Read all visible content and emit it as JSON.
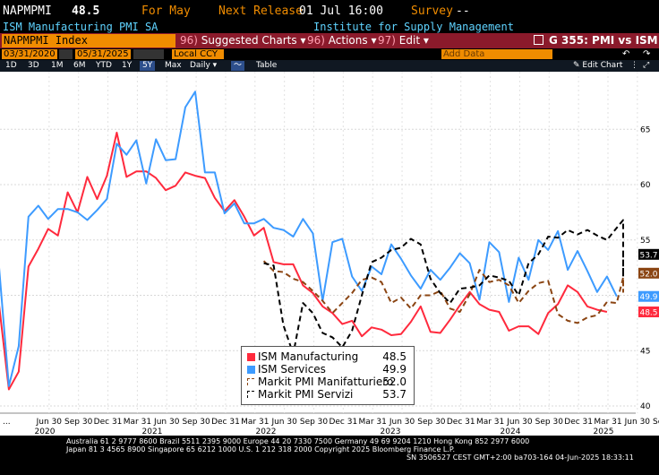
{
  "header": {
    "ticker": "NAPMPMI",
    "value": "48.5",
    "for_label": "For May",
    "next_release_label": "Next Release",
    "next_release_value": "01 Jul 16:00",
    "survey_label": "Survey",
    "survey_value": "--",
    "description": "ISM Manufacturing PMI SA",
    "source": "Institute for Supply Management"
  },
  "menubar": {
    "security": "NAPMPMI Index",
    "items": [
      {
        "num": "96)",
        "label": "Suggested Charts",
        "arrow": "▾"
      },
      {
        "num": "96)",
        "label": "Actions",
        "arrow": "▾"
      },
      {
        "num": "97)",
        "label": "Edit",
        "arrow": "▾"
      }
    ],
    "chart_id": "G 355: PMI vs ISM"
  },
  "controls": {
    "start_date": "03/31/2020",
    "end_date": "05/31/2025",
    "currency": "Local CCY",
    "add_data_placeholder": "Add Data"
  },
  "periods": {
    "items": [
      "1D",
      "3D",
      "1M",
      "6M",
      "YTD",
      "1Y",
      "5Y",
      "Max"
    ],
    "selected": "5Y",
    "frequency": "Daily",
    "table_label": "Table",
    "edit_chart": "Edit Chart"
  },
  "colors": {
    "ism_manufacturing": "#ff2a3d",
    "ism_services": "#3d9bff",
    "markit_manifatturiero": "#8b4513",
    "markit_servizi": "#000000",
    "ticker_field": "#f08c00",
    "menubar": "#8b1a2b"
  },
  "legend": [
    {
      "name": "ISM Manufacturing",
      "value": "48.5",
      "style": "solid"
    },
    {
      "name": "ISM Services",
      "value": "49.9",
      "style": "solid"
    },
    {
      "name": "Markit PMI Manifatturiero",
      "value": "52.0",
      "style": "dashed"
    },
    {
      "name": "Markit PMI Servizi",
      "value": "53.7",
      "style": "dashed"
    }
  ],
  "chart_data": {
    "type": "line",
    "ylim": [
      39.5,
      69
    ],
    "y_ticks": [
      40,
      45,
      50,
      55,
      60,
      65
    ],
    "x_tick_labels": [
      "Jun 30",
      "Sep 30",
      "Dec 31",
      "Mar 31",
      "Jun 30",
      "Sep 30",
      "Dec 31",
      "Mar 31",
      "Jun 30",
      "Sep 30",
      "Dec 31",
      "Mar 31",
      "Jun 30",
      "Sep 30",
      "Dec 31",
      "Mar 31",
      "Jun 30",
      "Sep 30",
      "Dec 31",
      "Mar 31",
      "Jun 30",
      "Sep 30",
      "Dec 31",
      "Mar 31"
    ],
    "year_labels": [
      "2020",
      "2021",
      "2022",
      "2023",
      "2024",
      "2025"
    ],
    "series": [
      {
        "name": "ISM Manufacturing",
        "start": "2020-03",
        "values": [
          49.1,
          41.5,
          43.1,
          52.6,
          54.2,
          56.0,
          55.4,
          59.3,
          57.5,
          60.7,
          58.7,
          60.8,
          64.7,
          60.7,
          61.2,
          61.2,
          60.6,
          59.5,
          59.9,
          61.1,
          60.8,
          60.6,
          58.8,
          57.6,
          58.6,
          57.1,
          55.4,
          56.1,
          53.0,
          52.8,
          52.8,
          50.9,
          50.2,
          49.0,
          48.4,
          47.4,
          47.7,
          46.3,
          47.1,
          46.9,
          46.4,
          46.5,
          47.6,
          49.0,
          46.7,
          46.6,
          47.8,
          49.1,
          50.3,
          49.2,
          48.7,
          48.5,
          46.8,
          47.2,
          47.2,
          46.5,
          48.4,
          49.2,
          50.9,
          50.3,
          49.0,
          48.7,
          48.5
        ]
      },
      {
        "name": "ISM Services",
        "start": "2020-03",
        "values": [
          52.5,
          41.8,
          45.4,
          57.1,
          58.1,
          56.9,
          57.8,
          57.8,
          57.5,
          56.8,
          57.7,
          58.7,
          63.7,
          62.7,
          64.0,
          60.1,
          64.1,
          62.2,
          62.3,
          67.0,
          68.4,
          61.1,
          61.1,
          57.4,
          58.3,
          56.5,
          56.5,
          56.9,
          56.1,
          55.9,
          55.3,
          56.9,
          55.6,
          49.5,
          54.8,
          55.1,
          51.7,
          50.4,
          52.6,
          51.9,
          54.6,
          53.3,
          51.8,
          50.6,
          52.3,
          51.4,
          52.5,
          53.8,
          52.9,
          49.6,
          54.8,
          53.9,
          49.4,
          53.4,
          51.4,
          55.0,
          54.1,
          55.8,
          52.3,
          54.0,
          52.2,
          50.3,
          51.7,
          49.9
        ]
      },
      {
        "name": "Markit PMI Manifatturiero",
        "start": "2022-06",
        "values": [
          53.1,
          52.2,
          52.1,
          51.5,
          51.2,
          50.4,
          49.5,
          48.4,
          49.3,
          50.2,
          51.4,
          51.6,
          51.2,
          49.3,
          49.8,
          48.8,
          50.0,
          50.0,
          50.4,
          48.8,
          48.5,
          50.1,
          52.3,
          51.2,
          51.4,
          50.9,
          49.3,
          50.4,
          51.1,
          51.3,
          48.3,
          47.7,
          47.5,
          48.0,
          48.2,
          49.4,
          49.3,
          51.6,
          50.6,
          50.3,
          51.5,
          52.0
        ]
      },
      {
        "name": "Markit PMI Servizi",
        "start": "2022-06",
        "values": [
          52.9,
          52.7,
          47.3,
          44.7,
          49.3,
          48.4,
          46.6,
          46.2,
          45.3,
          46.8,
          50.0,
          53.0,
          53.4,
          54.1,
          54.3,
          55.1,
          54.6,
          51.5,
          50.2,
          49.3,
          50.6,
          50.7,
          50.9,
          51.8,
          51.6,
          51.3,
          50.0,
          52.9,
          53.7,
          55.3,
          55.2,
          55.9,
          55.5,
          55.9,
          55.4,
          55.0,
          56.1,
          56.8,
          54.3,
          51.8,
          52.5,
          51.6,
          53.7
        ]
      }
    ],
    "right_labels": [
      {
        "value": "53.7",
        "series": "Markit PMI Servizi"
      },
      {
        "value": "52.0",
        "series": "Markit PMI Manifatturiero"
      },
      {
        "value": "49.9",
        "series": "ISM Services"
      },
      {
        "value": "48.5",
        "series": "ISM Manufacturing"
      }
    ]
  },
  "footer": {
    "line1": "Australia 61 2 9777 8600 Brazil 5511 2395 9000 Europe 44 20 7330 7500 Germany 49 69 9204 1210 Hong Kong 852 2977 6000",
    "line2": "Japan 81 3 4565 8900         Singapore 65 6212 1000         U.S. 1 212 318 2000              Copyright 2025 Bloomberg Finance L.P.",
    "line3": "SN 3506527 CEST GMT+2:00 ba703-164 04-Jun-2025 18:33:11"
  }
}
